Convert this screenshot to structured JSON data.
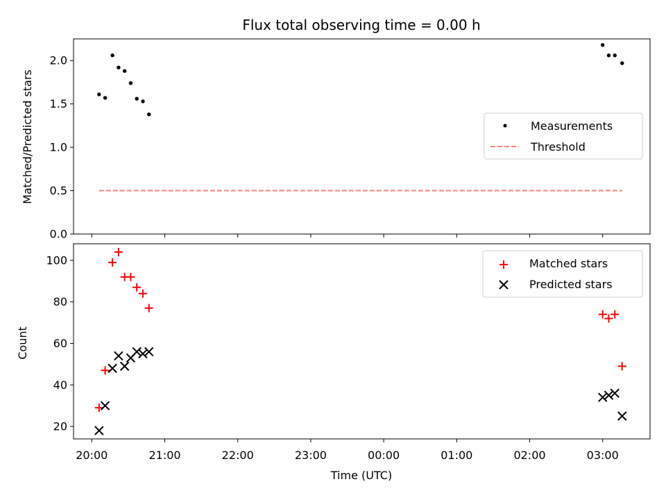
{
  "title": "Flux total observing time = 0.00 h",
  "xlabel": "Time (UTC)",
  "x_tick_labels": [
    "20:00",
    "21:00",
    "22:00",
    "23:00",
    "00:00",
    "01:00",
    "02:00",
    "03:00"
  ],
  "colors": {
    "measurements": "#000000",
    "threshold": "#ff7f7f",
    "matched": "#ff0000",
    "predicted": "#000000"
  },
  "chart_data": [
    {
      "type": "scatter",
      "ylabel": "Matched/Predicted stars",
      "ylim": [
        0,
        2.25
      ],
      "xlim": [
        "20:00",
        "03:30"
      ],
      "legend_position": "center-right",
      "y_ticks": [
        0.0,
        0.5,
        1.0,
        1.5,
        2.0
      ],
      "y_tick_labels": [
        "0.0",
        "0.5",
        "1.0",
        "1.5",
        "2.0"
      ],
      "series": [
        {
          "name": "Measurements",
          "marker": "dot",
          "x": [
            "20:06",
            "20:11",
            "20:17",
            "20:22",
            "20:27",
            "20:32",
            "20:37",
            "20:42",
            "20:47",
            "03:00",
            "03:05",
            "03:10",
            "03:16"
          ],
          "y": [
            1.61,
            1.57,
            2.06,
            1.92,
            1.88,
            1.74,
            1.56,
            1.53,
            1.38,
            2.18,
            2.06,
            2.06,
            1.97
          ]
        },
        {
          "name": "Threshold",
          "marker": "dashed-line",
          "x": [
            "20:06",
            "03:16"
          ],
          "y": [
            0.5,
            0.5
          ]
        }
      ]
    },
    {
      "type": "scatter",
      "ylabel": "Count",
      "ylim": [
        14,
        108
      ],
      "xlim": [
        "20:00",
        "03:30"
      ],
      "legend_position": "top-right",
      "y_ticks": [
        20,
        40,
        60,
        80,
        100
      ],
      "y_tick_labels": [
        "20",
        "40",
        "60",
        "80",
        "100"
      ],
      "series": [
        {
          "name": "Matched stars",
          "marker": "plus",
          "x": [
            "20:06",
            "20:11",
            "20:17",
            "20:22",
            "20:27",
            "20:32",
            "20:37",
            "20:42",
            "20:47",
            "03:00",
            "03:05",
            "03:10",
            "03:16"
          ],
          "y": [
            29,
            47,
            99,
            104,
            92,
            92,
            87,
            84,
            77,
            74,
            72,
            74,
            49
          ]
        },
        {
          "name": "Predicted stars",
          "marker": "x",
          "x": [
            "20:06",
            "20:11",
            "20:17",
            "20:22",
            "20:27",
            "20:32",
            "20:37",
            "20:42",
            "20:47",
            "03:00",
            "03:05",
            "03:10",
            "03:16"
          ],
          "y": [
            18,
            30,
            48,
            54,
            49,
            53,
            56,
            55,
            56,
            34,
            35,
            36,
            25
          ]
        }
      ]
    }
  ]
}
